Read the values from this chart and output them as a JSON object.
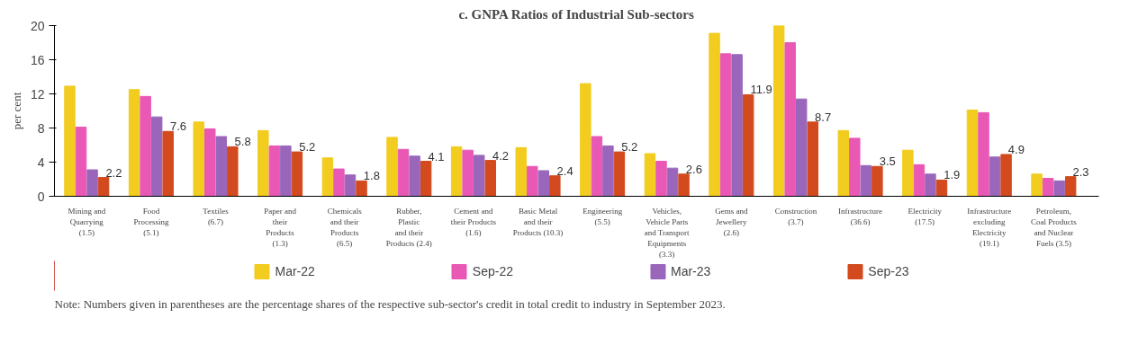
{
  "chart_data": {
    "type": "bar",
    "title": "c. GNPA Ratios of Industrial Sub-sectors",
    "ylabel": "per cent",
    "categories": [
      "Mining and\nQuarrying\n(1.5)",
      "Food\nProcessing\n(5.1)",
      "Textiles\n(6.7)",
      "Paper and\ntheir\nProducts\n(1.3)",
      "Chemicals\nand their\nProducts\n(6.5)",
      "Rubber,\nPlastic\nand their\nProducts (2.4)",
      "Cement and\ntheir Products\n(1.6)",
      "Basic Metal\nand their\nProducts (10.3)",
      "Engineering\n(5.5)",
      "Vehicles,\nVehicle Parts\nand Transport\nEquipments\n(3.3)",
      "Gems and\nJewellery\n(2.6)",
      "Construction\n(3.7)",
      "Infrastructure\n(36.6)",
      "Electricity\n(17.5)",
      "Infrastructure\nexcluding\nElectricity\n(19.1)",
      "Petroleum,\nCoal Products\nand Nuclear\nFuels (3.5)"
    ],
    "series": [
      {
        "name": "Mar-22",
        "color": "#f2cc1e",
        "values": [
          12.9,
          12.5,
          8.7,
          7.7,
          4.5,
          6.9,
          5.8,
          5.7,
          13.2,
          5.0,
          19.1,
          20.0,
          7.7,
          5.4,
          10.1,
          2.6
        ]
      },
      {
        "name": "Sep-22",
        "color": "#e858b4",
        "values": [
          8.1,
          11.7,
          7.9,
          5.9,
          3.2,
          5.5,
          5.4,
          3.5,
          7.0,
          4.1,
          16.7,
          18.0,
          6.8,
          3.7,
          9.8,
          2.1
        ]
      },
      {
        "name": "Mar-23",
        "color": "#9966bb",
        "values": [
          3.1,
          9.3,
          7.0,
          5.9,
          2.5,
          4.7,
          4.8,
          3.0,
          5.9,
          3.3,
          16.6,
          11.4,
          3.6,
          2.6,
          4.6,
          1.8
        ]
      },
      {
        "name": "Sep-23",
        "color": "#d24a1e",
        "values": [
          2.2,
          7.6,
          5.8,
          5.2,
          1.8,
          4.1,
          4.2,
          2.4,
          5.2,
          2.6,
          11.9,
          8.7,
          3.5,
          1.9,
          4.9,
          2.3
        ],
        "value_labels": [
          "2.2",
          "7.6",
          "5.8",
          "5.2",
          "1.8",
          "4.1",
          "4.2",
          "2.4",
          "5.2",
          "2.6",
          "11.9",
          "8.7",
          "3.5",
          "1.9",
          "4.9",
          "2.3"
        ]
      }
    ],
    "ylim": [
      0,
      20
    ],
    "yticks": [
      0,
      4,
      8,
      12,
      16,
      20
    ],
    "grid": false,
    "legend": "bottom",
    "annotations": [
      "Note: Numbers given in parentheses are the percentage shares of the respective sub-sector's credit in total credit to industry in September 2023."
    ]
  }
}
